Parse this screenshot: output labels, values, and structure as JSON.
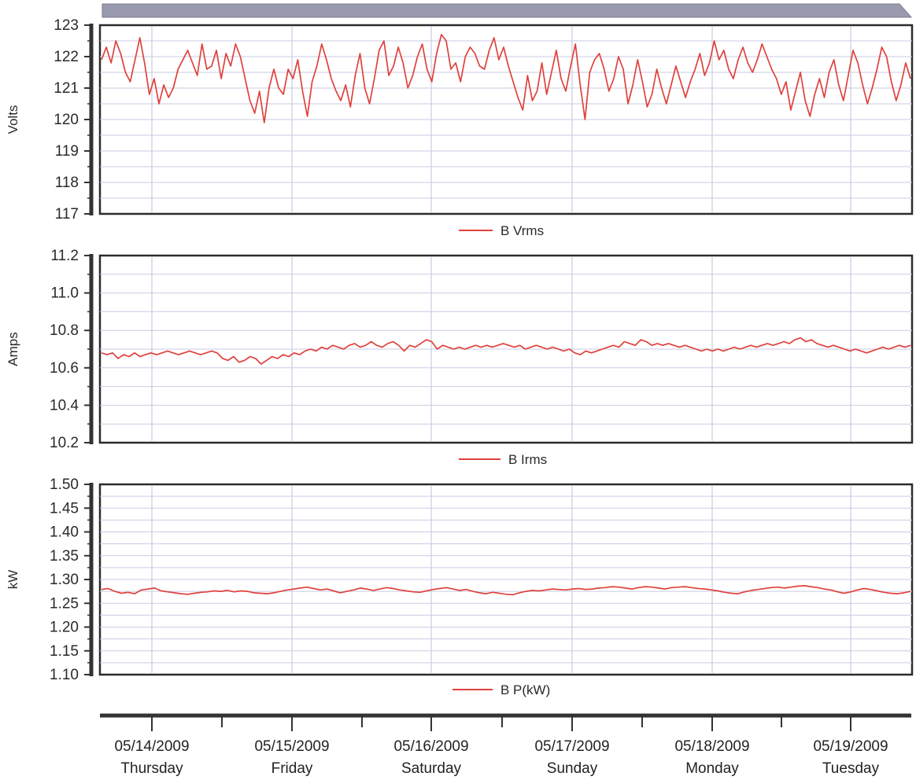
{
  "chart_data": [
    {
      "type": "line",
      "ylabel": "Volts",
      "ylim": [
        117,
        123
      ],
      "yticks": [
        "123",
        "122",
        "121",
        "120",
        "119",
        "118",
        "117"
      ],
      "series": [
        {
          "name": "B Vrms",
          "color": "#e0413c",
          "values": [
            121.9,
            122.3,
            121.8,
            122.5,
            122.1,
            121.5,
            121.2,
            121.9,
            122.6,
            121.8,
            120.8,
            121.3,
            120.5,
            121.1,
            120.7,
            121.0,
            121.6,
            121.9,
            122.2,
            121.8,
            121.4,
            122.4,
            121.6,
            121.7,
            122.2,
            121.3,
            122.1,
            121.7,
            122.4,
            122.0,
            121.3,
            120.6,
            120.2,
            120.9,
            119.9,
            121.0,
            121.6,
            121.0,
            120.8,
            121.6,
            121.3,
            121.9,
            120.9,
            120.1,
            121.2,
            121.7,
            122.4,
            121.9,
            121.3,
            120.9,
            120.6,
            121.1,
            120.4,
            121.4,
            122.1,
            121.0,
            120.5,
            121.3,
            122.2,
            122.5,
            121.4,
            121.7,
            122.3,
            121.8,
            121.0,
            121.4,
            122.0,
            122.4,
            121.6,
            121.2,
            122.1,
            122.7,
            122.5,
            121.6,
            121.8,
            121.2,
            122.0,
            122.3,
            122.1,
            121.7,
            121.6,
            122.2,
            122.6,
            121.9,
            122.3,
            121.7,
            121.2,
            120.7,
            120.3,
            121.4,
            120.6,
            120.9,
            121.8,
            120.8,
            121.5,
            122.2,
            121.3,
            120.9,
            121.7,
            122.4,
            121.1,
            120.0,
            121.5,
            121.9,
            122.1,
            121.6,
            120.9,
            121.3,
            122.0,
            121.6,
            120.5,
            121.1,
            121.9,
            121.2,
            120.4,
            120.8,
            121.6,
            121.0,
            120.5,
            121.1,
            121.7,
            121.2,
            120.7,
            121.2,
            121.6,
            122.1,
            121.4,
            121.8,
            122.5,
            121.9,
            122.2,
            121.6,
            121.3,
            121.9,
            122.3,
            121.8,
            121.5,
            121.9,
            122.4,
            122.0,
            121.6,
            121.3,
            120.8,
            121.2,
            120.3,
            120.9,
            121.5,
            120.6,
            120.1,
            120.8,
            121.3,
            120.7,
            121.5,
            121.9,
            121.1,
            120.6,
            121.4,
            122.2,
            121.8,
            121.1,
            120.5,
            121.0,
            121.6,
            122.3,
            122.0,
            121.2,
            120.6,
            121.1,
            121.8,
            121.3
          ]
        }
      ]
    },
    {
      "type": "line",
      "ylabel": "Amps",
      "ylim": [
        10.2,
        11.2
      ],
      "yticks": [
        "11.2",
        "11.0",
        "10.8",
        "10.6",
        "10.4",
        "10.2"
      ],
      "series": [
        {
          "name": "B Irms",
          "color": "#e0413c",
          "values": [
            10.68,
            10.67,
            10.68,
            10.65,
            10.67,
            10.66,
            10.68,
            10.66,
            10.67,
            10.68,
            10.67,
            10.68,
            10.69,
            10.68,
            10.67,
            10.68,
            10.69,
            10.68,
            10.67,
            10.68,
            10.69,
            10.68,
            10.65,
            10.64,
            10.66,
            10.63,
            10.64,
            10.66,
            10.65,
            10.62,
            10.64,
            10.66,
            10.65,
            10.67,
            10.66,
            10.68,
            10.67,
            10.69,
            10.7,
            10.69,
            10.71,
            10.7,
            10.72,
            10.71,
            10.7,
            10.72,
            10.73,
            10.71,
            10.72,
            10.74,
            10.72,
            10.71,
            10.73,
            10.74,
            10.72,
            10.69,
            10.72,
            10.71,
            10.73,
            10.75,
            10.74,
            10.7,
            10.72,
            10.71,
            10.7,
            10.71,
            10.7,
            10.71,
            10.72,
            10.71,
            10.72,
            10.71,
            10.72,
            10.73,
            10.72,
            10.71,
            10.72,
            10.7,
            10.71,
            10.72,
            10.71,
            10.7,
            10.71,
            10.7,
            10.69,
            10.7,
            10.68,
            10.67,
            10.69,
            10.68,
            10.69,
            10.7,
            10.71,
            10.72,
            10.71,
            10.74,
            10.73,
            10.72,
            10.75,
            10.74,
            10.72,
            10.73,
            10.72,
            10.73,
            10.72,
            10.71,
            10.72,
            10.71,
            10.7,
            10.69,
            10.7,
            10.69,
            10.7,
            10.69,
            10.7,
            10.71,
            10.7,
            10.71,
            10.72,
            10.71,
            10.72,
            10.73,
            10.72,
            10.73,
            10.74,
            10.73,
            10.75,
            10.76,
            10.74,
            10.75,
            10.73,
            10.72,
            10.71,
            10.72,
            10.71,
            10.7,
            10.69,
            10.7,
            10.69,
            10.68,
            10.69,
            10.7,
            10.71,
            10.7,
            10.71,
            10.72,
            10.71,
            10.72
          ]
        }
      ]
    },
    {
      "type": "line",
      "ylabel": "kW",
      "ylim": [
        1.1,
        1.5
      ],
      "yticks": [
        "1.50",
        "1.45",
        "1.40",
        "1.35",
        "1.30",
        "1.25",
        "1.20",
        "1.15",
        "1.10"
      ],
      "series": [
        {
          "name": "B P(kW)",
          "color": "#e0413c",
          "values": [
            1.279,
            1.281,
            1.275,
            1.271,
            1.273,
            1.27,
            1.278,
            1.28,
            1.282,
            1.276,
            1.274,
            1.272,
            1.27,
            1.269,
            1.271,
            1.273,
            1.274,
            1.276,
            1.275,
            1.277,
            1.274,
            1.276,
            1.275,
            1.272,
            1.271,
            1.27,
            1.272,
            1.275,
            1.278,
            1.28,
            1.282,
            1.284,
            1.281,
            1.278,
            1.28,
            1.276,
            1.272,
            1.275,
            1.278,
            1.282,
            1.28,
            1.277,
            1.28,
            1.283,
            1.281,
            1.278,
            1.276,
            1.274,
            1.273,
            1.276,
            1.279,
            1.281,
            1.283,
            1.28,
            1.277,
            1.279,
            1.275,
            1.272,
            1.27,
            1.273,
            1.271,
            1.269,
            1.268,
            1.272,
            1.275,
            1.277,
            1.276,
            1.278,
            1.28,
            1.279,
            1.278,
            1.28,
            1.281,
            1.279,
            1.28,
            1.282,
            1.283,
            1.285,
            1.284,
            1.282,
            1.28,
            1.283,
            1.285,
            1.284,
            1.282,
            1.28,
            1.283,
            1.284,
            1.285,
            1.283,
            1.281,
            1.28,
            1.278,
            1.276,
            1.273,
            1.271,
            1.27,
            1.274,
            1.277,
            1.279,
            1.281,
            1.283,
            1.284,
            1.282,
            1.284,
            1.286,
            1.287,
            1.285,
            1.283,
            1.28,
            1.278,
            1.274,
            1.271,
            1.274,
            1.278,
            1.281,
            1.279,
            1.276,
            1.273,
            1.271,
            1.27,
            1.272,
            1.275
          ]
        }
      ]
    }
  ],
  "x_axis": {
    "days": [
      {
        "date": "05/14/2009",
        "weekday": "Thursday"
      },
      {
        "date": "05/15/2009",
        "weekday": "Friday"
      },
      {
        "date": "05/16/2009",
        "weekday": "Saturday"
      },
      {
        "date": "05/17/2009",
        "weekday": "Sunday"
      },
      {
        "date": "05/18/2009",
        "weekday": "Monday"
      },
      {
        "date": "05/19/2009",
        "weekday": "Tuesday"
      }
    ]
  }
}
